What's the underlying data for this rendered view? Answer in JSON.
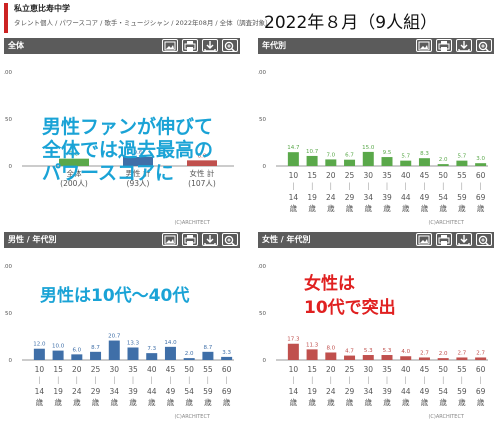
{
  "header": {
    "title": "私立恵比寿中学",
    "subtitle": "タレント個人 / パワースコア / 歌手・ミュージシャン / 2022年08月 / 全体（調査対象）",
    "headline": "2022年８月（9人組）"
  },
  "panels": [
    {
      "title": "全体",
      "copyright": "(C)ARCHITECT",
      "overlay": {
        "lines": [
          "男性ファンが伸びて",
          "全体では過去最高の",
          "パワースコアに"
        ],
        "color": "#1aa3d6"
      },
      "chart_data": {
        "type": "bar",
        "ylim": [
          0,
          100
        ],
        "yticks": [
          0,
          50,
          100
        ],
        "categories": [
          [
            "全体",
            "(200人)"
          ],
          [
            "男性 計",
            "(93人)"
          ],
          [
            "女性 計",
            "(107人)"
          ]
        ],
        "values": [
          7.8,
          9.6,
          6.0
        ],
        "labels": [
          "7.8",
          "9.6",
          "6.0"
        ],
        "colors": [
          "#5aa84a",
          "#3f6fa8",
          "#c0504d"
        ]
      }
    },
    {
      "title": "年代別",
      "copyright": "(C)ARCHITECT",
      "chart_data": {
        "type": "bar",
        "color": "#5aa84a",
        "ylim": [
          0,
          100
        ],
        "yticks": [
          0,
          50,
          100
        ],
        "categories": [
          [
            "10",
            "｜",
            "14",
            "歳"
          ],
          [
            "15",
            "｜",
            "19",
            "歳"
          ],
          [
            "20",
            "｜",
            "24",
            "歳"
          ],
          [
            "25",
            "｜",
            "29",
            "歳"
          ],
          [
            "30",
            "｜",
            "34",
            "歳"
          ],
          [
            "35",
            "｜",
            "39",
            "歳"
          ],
          [
            "40",
            "｜",
            "44",
            "歳"
          ],
          [
            "45",
            "｜",
            "49",
            "歳"
          ],
          [
            "50",
            "｜",
            "54",
            "歳"
          ],
          [
            "55",
            "｜",
            "59",
            "歳"
          ],
          [
            "60",
            "｜",
            "69",
            "歳"
          ]
        ],
        "values": [
          14.7,
          10.7,
          7.0,
          6.7,
          15.0,
          9.5,
          5.7,
          8.3,
          2.0,
          5.7,
          3.0
        ],
        "labels": [
          "14.7",
          "10.7",
          "7.0",
          "6.7",
          "15.0",
          "9.5",
          "5.7",
          "8.3",
          "2.0",
          "5.7",
          "3.0"
        ]
      }
    },
    {
      "title": "男性 / 年代別",
      "copyright": "(C)ARCHITECT",
      "overlay": {
        "lines": [
          "男性は10代～40代"
        ],
        "color": "#1aa3d6"
      },
      "chart_data": {
        "type": "bar",
        "color": "#3f6fa8",
        "ylim": [
          0,
          100
        ],
        "yticks": [
          0,
          50,
          100
        ],
        "categories": [
          [
            "10",
            "｜",
            "14",
            "歳"
          ],
          [
            "15",
            "｜",
            "19",
            "歳"
          ],
          [
            "20",
            "｜",
            "24",
            "歳"
          ],
          [
            "25",
            "｜",
            "29",
            "歳"
          ],
          [
            "30",
            "｜",
            "34",
            "歳"
          ],
          [
            "35",
            "｜",
            "39",
            "歳"
          ],
          [
            "40",
            "｜",
            "44",
            "歳"
          ],
          [
            "45",
            "｜",
            "49",
            "歳"
          ],
          [
            "50",
            "｜",
            "54",
            "歳"
          ],
          [
            "55",
            "｜",
            "59",
            "歳"
          ],
          [
            "60",
            "｜",
            "69",
            "歳"
          ]
        ],
        "values": [
          12.0,
          10.0,
          6.0,
          8.7,
          20.7,
          13.3,
          7.3,
          14.0,
          2.0,
          8.7,
          3.3
        ],
        "labels": [
          "12.0",
          "10.0",
          "6.0",
          "8.7",
          "20.7",
          "13.3",
          "7.3",
          "14.0",
          "2.0",
          "8.7",
          "3.3"
        ]
      }
    },
    {
      "title": "女性 / 年代別",
      "copyright": "(C)ARCHITECT",
      "overlay": {
        "lines": [
          "女性は",
          "10代で突出"
        ],
        "color": "#e02020"
      },
      "chart_data": {
        "type": "bar",
        "color": "#c0504d",
        "ylim": [
          0,
          100
        ],
        "yticks": [
          0,
          50,
          100
        ],
        "categories": [
          [
            "10",
            "｜",
            "14",
            "歳"
          ],
          [
            "15",
            "｜",
            "19",
            "歳"
          ],
          [
            "20",
            "｜",
            "24",
            "歳"
          ],
          [
            "25",
            "｜",
            "29",
            "歳"
          ],
          [
            "30",
            "｜",
            "34",
            "歳"
          ],
          [
            "35",
            "｜",
            "39",
            "歳"
          ],
          [
            "40",
            "｜",
            "44",
            "歳"
          ],
          [
            "45",
            "｜",
            "49",
            "歳"
          ],
          [
            "50",
            "｜",
            "54",
            "歳"
          ],
          [
            "55",
            "｜",
            "59",
            "歳"
          ],
          [
            "60",
            "｜",
            "69",
            "歳"
          ]
        ],
        "values": [
          17.3,
          11.3,
          8.0,
          4.7,
          5.3,
          5.3,
          4.0,
          2.7,
          2.0,
          2.7,
          2.7
        ],
        "labels": [
          "17.3",
          "11.3",
          "8.0",
          "4.7",
          "5.3",
          "5.3",
          "4.0",
          "2.7",
          "2.0",
          "2.7",
          "2.7"
        ]
      }
    }
  ],
  "icons": [
    "image-icon",
    "print-icon",
    "download-icon",
    "zoom-icon"
  ]
}
